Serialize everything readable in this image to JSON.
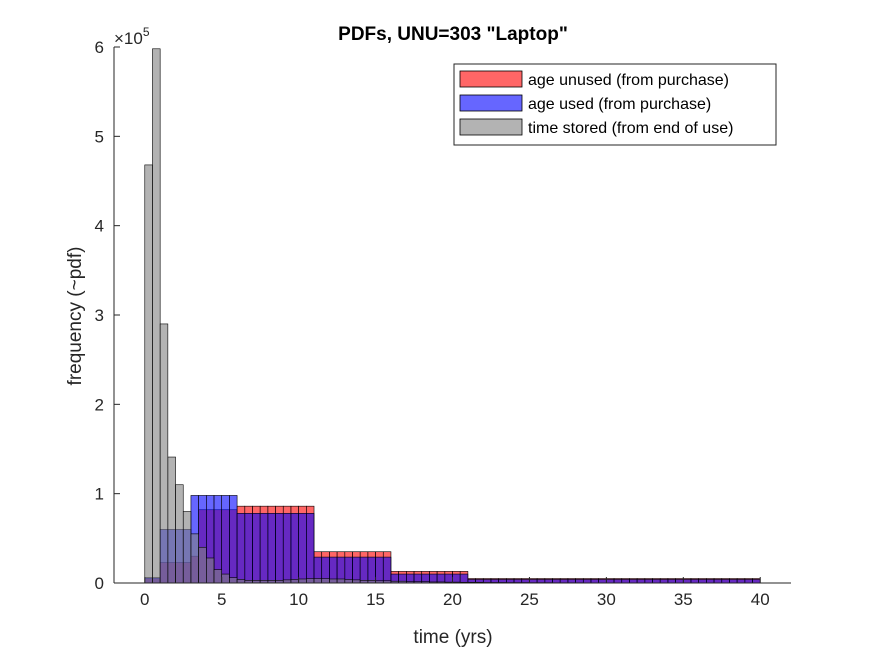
{
  "chart_data": {
    "type": "bar",
    "title": "PDFs, UNU=303 \"Laptop\"",
    "xlabel": "time (yrs)",
    "ylabel": "frequency (~pdf)",
    "xlim": [
      -2,
      42
    ],
    "ylim": [
      0,
      600000
    ],
    "xticks": [
      "0",
      "5",
      "10",
      "15",
      "20",
      "25",
      "30",
      "35",
      "40"
    ],
    "xtick_values": [
      0,
      5,
      10,
      15,
      20,
      25,
      30,
      35,
      40
    ],
    "yticks": [
      "0",
      "1",
      "2",
      "3",
      "4",
      "5",
      "6"
    ],
    "ytick_values": [
      0,
      100000,
      200000,
      300000,
      400000,
      500000,
      600000
    ],
    "y_exponent_base": "×10",
    "y_exponent_power": "5",
    "bin_width": 0.5,
    "bin_start": 0,
    "legend_position": "top-right",
    "grid": false,
    "series": [
      {
        "name": "age unused (from purchase)",
        "color": "#ff0000",
        "alpha": 0.6,
        "values": [
          5000,
          5000,
          23000,
          23000,
          23000,
          23000,
          30000,
          82000,
          82000,
          82000,
          82000,
          82000,
          86000,
          86000,
          86000,
          86000,
          86000,
          86000,
          86000,
          86000,
          86000,
          86000,
          35000,
          35000,
          35000,
          35000,
          35000,
          35000,
          35000,
          35000,
          35000,
          35000,
          13000,
          13000,
          13000,
          13000,
          13000,
          13000,
          13000,
          13000,
          13000,
          13000,
          5000,
          5000,
          5000,
          5000,
          5000,
          5000,
          5000,
          5000,
          5000,
          5000,
          5000,
          5000,
          5000,
          5000,
          5000,
          5000,
          5000,
          5000,
          5000,
          5000,
          5000,
          5000,
          5000,
          5000,
          5000,
          5000,
          5000,
          5000,
          5000,
          5000,
          5000,
          5000,
          5000,
          5000,
          5000,
          5000,
          5000,
          5000
        ]
      },
      {
        "name": "age used (from purchase)",
        "color": "#0000ff",
        "alpha": 0.6,
        "values": [
          6000,
          6000,
          60000,
          60000,
          60000,
          60000,
          98000,
          98000,
          98000,
          98000,
          98000,
          98000,
          78000,
          78000,
          78000,
          78000,
          78000,
          78000,
          78000,
          78000,
          78000,
          78000,
          29000,
          29000,
          29000,
          29000,
          29000,
          29000,
          29000,
          29000,
          29000,
          29000,
          10000,
          10000,
          10000,
          10000,
          10000,
          10000,
          10000,
          10000,
          10000,
          10000,
          4000,
          4000,
          4000,
          4000,
          4000,
          4000,
          4000,
          4000,
          4000,
          4000,
          4000,
          4000,
          4000,
          4000,
          4000,
          4000,
          4000,
          4000,
          4000,
          4000,
          4000,
          4000,
          4000,
          4000,
          4000,
          4000,
          4000,
          4000,
          4000,
          4000,
          4000,
          4000,
          4000,
          4000,
          4000,
          4000,
          4000,
          4000
        ]
      },
      {
        "name": "time stored (from end of use)",
        "color": "#808080",
        "alpha": 0.6,
        "values": [
          468000,
          598000,
          290000,
          141000,
          110000,
          80000,
          55000,
          40000,
          28000,
          15000,
          10000,
          6000,
          4000,
          3000,
          3000,
          3000,
          3000,
          3000,
          3500,
          4000,
          4500,
          5000,
          5000,
          5000,
          4500,
          4500,
          4000,
          3500,
          3000,
          3000,
          2500,
          2500,
          2000,
          2000,
          1500,
          1500,
          1500,
          1200,
          1200,
          1000,
          1000,
          800,
          800,
          800,
          600,
          600,
          600,
          500,
          500,
          500,
          400,
          400,
          400,
          300,
          300,
          300,
          300,
          200,
          200,
          200,
          200,
          200,
          200,
          200,
          200,
          200,
          100,
          100,
          100,
          100,
          100,
          100,
          100,
          100,
          100,
          100,
          100,
          100,
          100,
          100
        ]
      }
    ]
  }
}
